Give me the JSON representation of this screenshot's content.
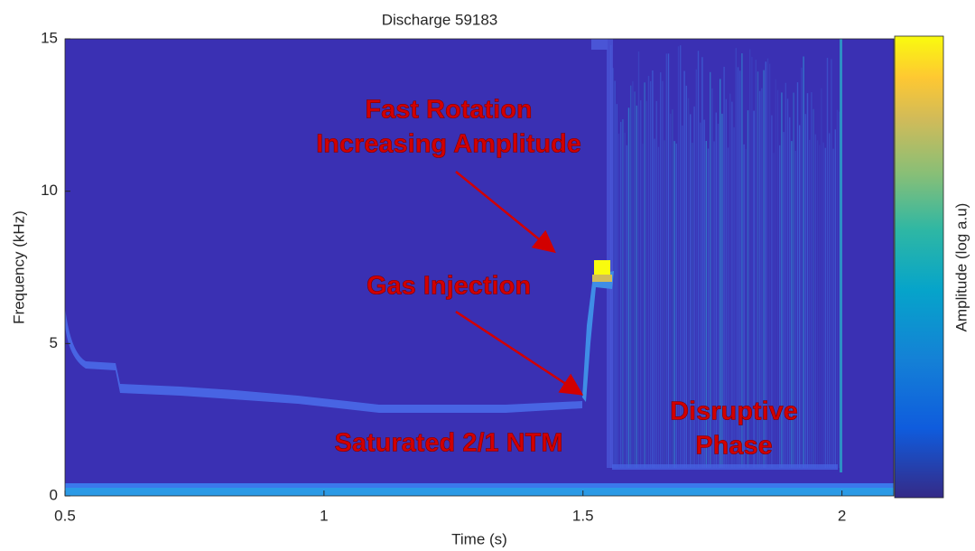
{
  "chart_data": {
    "type": "spectrogram",
    "title": "Discharge 59183",
    "x_label": "Time (s)",
    "y_label": "Frequency (kHz)",
    "colorbar_label": "Amplitude (log a.u)",
    "xlim": [
      0.5,
      2.1
    ],
    "xticks": [
      0.5,
      1,
      1.5,
      2
    ],
    "ylim": [
      0,
      15
    ],
    "yticks": [
      0,
      5,
      10,
      15
    ],
    "annotations": [
      "Fast Rotation",
      "Increasing Amplitude",
      "Gas Injection",
      "Saturated 2/1 NTM",
      "Disruptive",
      "Phase"
    ]
  }
}
